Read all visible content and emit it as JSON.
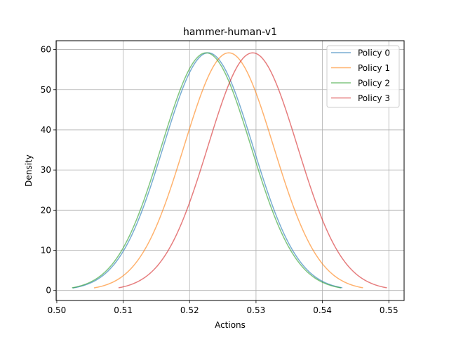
{
  "chart_data": {
    "type": "line",
    "title": "hammer-human-v1",
    "xlabel": "Actions",
    "ylabel": "Density",
    "xlim": [
      0.4999,
      0.5523
    ],
    "ylim": [
      -2.5,
      62.2
    ],
    "x_ticks": [
      0.5,
      0.51,
      0.52,
      0.53,
      0.54,
      0.55
    ],
    "x_tick_labels": [
      "0.50",
      "0.51",
      "0.52",
      "0.53",
      "0.54",
      "0.55"
    ],
    "y_ticks": [
      0,
      10,
      20,
      30,
      40,
      50,
      60
    ],
    "y_tick_labels": [
      "0",
      "10",
      "20",
      "30",
      "40",
      "50",
      "60"
    ],
    "grid": true,
    "legend_position": "upper right",
    "series": [
      {
        "name": "Policy 0",
        "color": "#1f77b4",
        "distribution": "normal",
        "mean": 0.5228,
        "std": 0.00674,
        "x_range": [
          0.5024,
          0.543
        ]
      },
      {
        "name": "Policy 1",
        "color": "#ff7f0e",
        "distribution": "normal",
        "mean": 0.5259,
        "std": 0.00674,
        "x_range": [
          0.5056,
          0.5461
        ]
      },
      {
        "name": "Policy 2",
        "color": "#2ca02c",
        "distribution": "normal",
        "mean": 0.5225,
        "std": 0.00674,
        "x_range": [
          0.5023,
          0.5428
        ]
      },
      {
        "name": "Policy 3",
        "color": "#d62728",
        "distribution": "normal",
        "mean": 0.5295,
        "std": 0.00674,
        "x_range": [
          0.5093,
          0.5497
        ]
      }
    ]
  }
}
